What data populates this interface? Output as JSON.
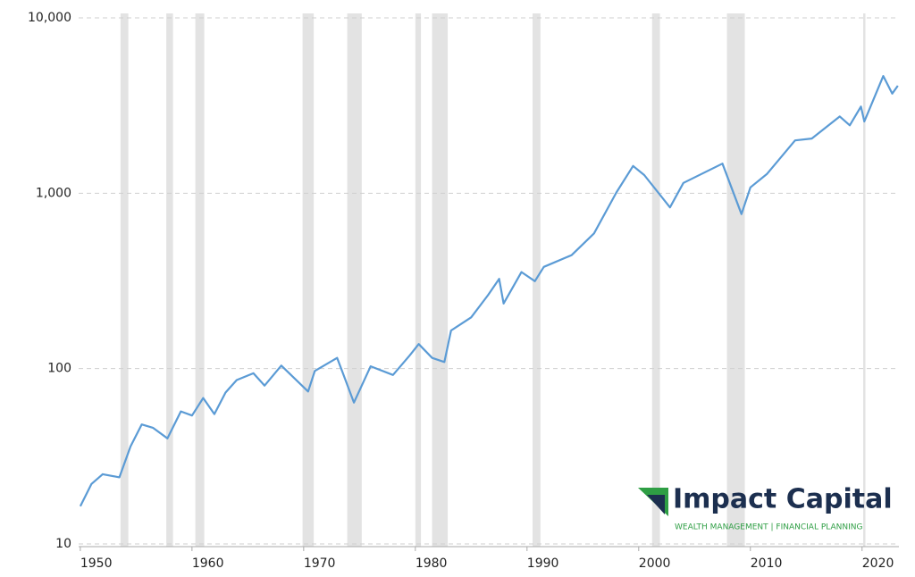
{
  "chart_data": {
    "type": "line",
    "log_y": true,
    "grid": true,
    "color": "#5b9bd5",
    "band_color": "#e3e3e3",
    "x": [
      1950,
      1951,
      1952,
      1953.5,
      1954.5,
      1955.5,
      1956.5,
      1957.8,
      1959,
      1960,
      1961,
      1962,
      1963,
      1964,
      1965.5,
      1966.5,
      1968,
      1970.4,
      1971,
      1973,
      1974.5,
      1976,
      1978,
      1979.5,
      1980.3,
      1981.5,
      1982.6,
      1983.2,
      1985,
      1986.5,
      1987.5,
      1987.9,
      1989.5,
      1990.7,
      1991.5,
      1994,
      1996,
      1998,
      1999.5,
      2000.5,
      2002.8,
      2004,
      2007.5,
      2009.2,
      2010,
      2011.5,
      2014,
      2015.5,
      2018,
      2018.9,
      2019.9,
      2020.2,
      2021.9,
      2022.7,
      2023.2
    ],
    "values": [
      16.4,
      22,
      25,
      24,
      36,
      48,
      46,
      40,
      57,
      54,
      68,
      55,
      73,
      86,
      94,
      80,
      104,
      74,
      97,
      115,
      64,
      103,
      92,
      119,
      138,
      115,
      109,
      165,
      196,
      262,
      325,
      235,
      355,
      315,
      380,
      444,
      590,
      1010,
      1430,
      1270,
      830,
      1145,
      1475,
      760,
      1080,
      1290,
      2000,
      2050,
      2740,
      2440,
      3120,
      2565,
      4660,
      3700,
      4100
    ],
    "recessions": [
      [
        1953.6,
        1954.3
      ],
      [
        1957.7,
        1958.3
      ],
      [
        1960.3,
        1961.1
      ],
      [
        1969.9,
        1970.9
      ],
      [
        1973.9,
        1975.2
      ],
      [
        1980.0,
        1980.5
      ],
      [
        1981.5,
        1982.9
      ],
      [
        1990.5,
        1991.2
      ],
      [
        2001.2,
        2001.9
      ],
      [
        2007.9,
        2009.5
      ],
      [
        2020.1,
        2020.3
      ]
    ],
    "xlim": [
      1949.85,
      2023.3
    ],
    "xticks": [
      1950,
      1960,
      1970,
      1980,
      1990,
      2000,
      2010,
      2020
    ],
    "ylim": [
      10,
      10000
    ],
    "yticks": [
      {
        "value": 10,
        "label": "10"
      },
      {
        "value": 100,
        "label": "100"
      },
      {
        "value": 1000,
        "label": "1,000"
      },
      {
        "value": 10000,
        "label": "10,000"
      }
    ]
  },
  "logo": {
    "name": "Impact Capital",
    "tagline": "WEALTH MANAGEMENT | FINANCIAL PLANNING"
  }
}
